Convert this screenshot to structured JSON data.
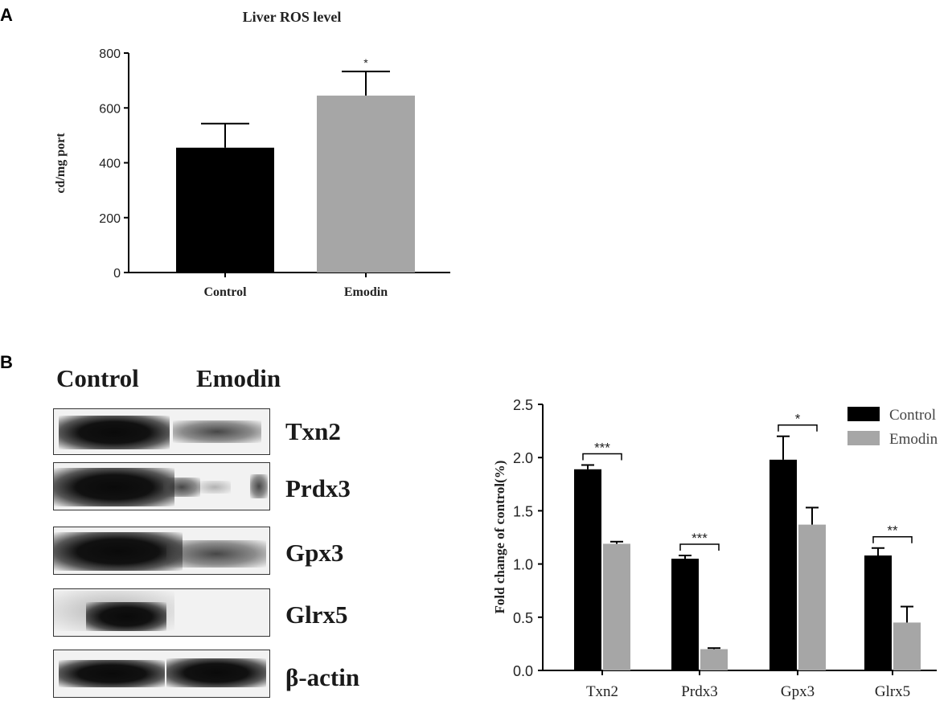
{
  "panel_labels": {
    "a": "A",
    "b": "B"
  },
  "blot": {
    "lane_labels": [
      "Control",
      "Emodin"
    ],
    "proteins": [
      "Txn2",
      "Prdx3",
      "Gpx3",
      "Glrx5",
      "β-actin"
    ]
  },
  "chart_data": [
    {
      "type": "bar",
      "title": "Liver ROS level",
      "ylabel": "cd/mg port",
      "xlabel": "",
      "categories": [
        "Control",
        "Emodin"
      ],
      "values": [
        455,
        645
      ],
      "errors": [
        88,
        88
      ],
      "colors": [
        "#000000",
        "#a6a6a6"
      ],
      "significance": [
        "",
        "*"
      ],
      "ylim": [
        0,
        800
      ],
      "yticks": [
        0,
        200,
        400,
        600,
        800
      ],
      "grid": false
    },
    {
      "type": "bar",
      "title": "",
      "ylabel": "Fold change of control(%)",
      "xlabel": "",
      "categories": [
        "Txn2",
        "Prdx3",
        "Gpx3",
        "Glrx5"
      ],
      "series": [
        {
          "name": "Control",
          "color": "#000000",
          "values": [
            1.89,
            1.05,
            1.98,
            1.08
          ],
          "errors": [
            0.04,
            0.03,
            0.22,
            0.07
          ]
        },
        {
          "name": "Emodin",
          "color": "#a6a6a6",
          "values": [
            1.19,
            0.2,
            1.37,
            0.45
          ],
          "errors": [
            0.02,
            0.01,
            0.16,
            0.15
          ]
        }
      ],
      "significance": [
        "***",
        "***",
        "*",
        "**"
      ],
      "ylim": [
        0,
        2.5
      ],
      "yticks": [
        "0.0",
        "0.5",
        "1.0",
        "1.5",
        "2.0",
        "2.5"
      ],
      "legend": "top-right",
      "grid": false
    }
  ]
}
